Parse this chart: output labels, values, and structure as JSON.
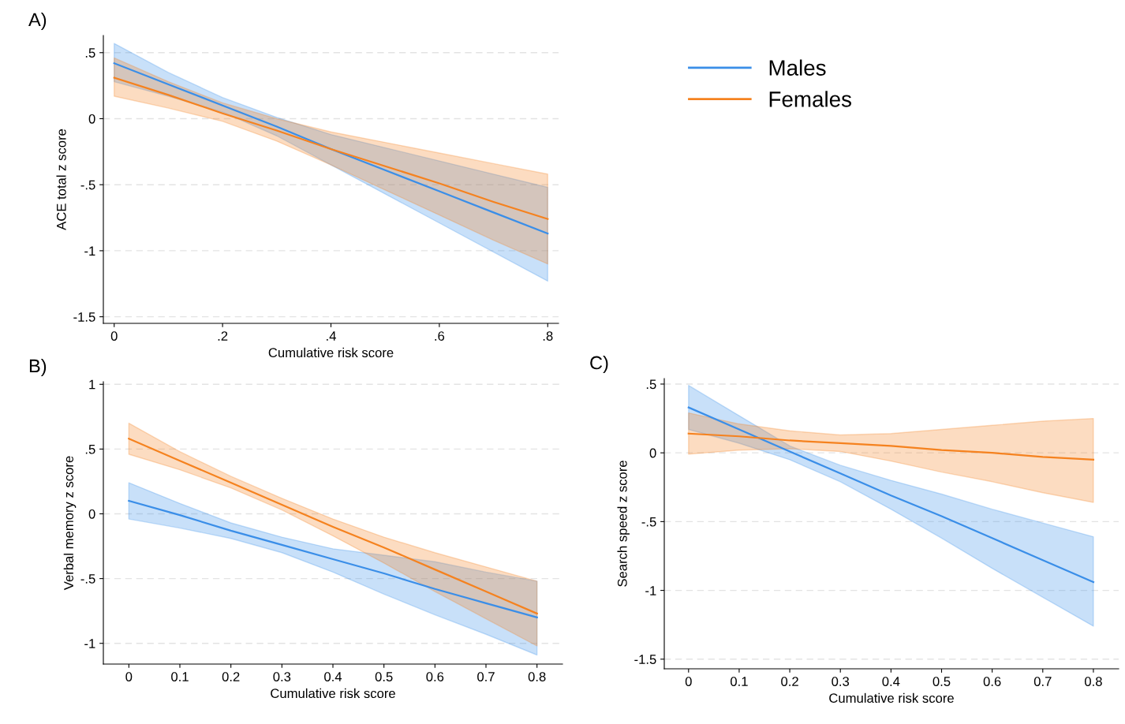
{
  "chart_data": [
    {
      "type": "line",
      "title": "A)",
      "xlabel": "Cumulative risk score",
      "ylabel": "ACE total z score",
      "xlim": [
        -0.02,
        0.82
      ],
      "ylim": [
        -1.55,
        0.63
      ],
      "xticks": [
        0,
        {
          "value": 0.2,
          "label": ".2"
        },
        {
          "value": 0.4,
          "label": ".4"
        },
        {
          "value": 0.6,
          "label": ".6"
        },
        {
          "value": 0.8,
          "label": ".8"
        }
      ],
      "yticks": [
        {
          "value": -1.5,
          "label": "-1.5"
        },
        {
          "value": -1,
          "label": "-1"
        },
        {
          "value": -0.5,
          "label": "-.5"
        },
        0,
        {
          "value": 0.5,
          "label": ".5"
        }
      ],
      "grid": "y",
      "legend": "right",
      "x": [
        0,
        0.1,
        0.2,
        0.3,
        0.4,
        0.5,
        0.6,
        0.7,
        0.8
      ],
      "series": [
        {
          "name": "Males",
          "color": "#3a8ee8",
          "values": [
            0.42,
            0.26,
            0.1,
            -0.06,
            -0.23,
            -0.39,
            -0.55,
            -0.71,
            -0.87
          ],
          "lower": [
            0.28,
            0.17,
            0.05,
            -0.13,
            -0.35,
            -0.57,
            -0.79,
            -1.01,
            -1.23
          ],
          "upper": [
            0.57,
            0.35,
            0.16,
            0.01,
            -0.12,
            -0.22,
            -0.32,
            -0.42,
            -0.52
          ]
        },
        {
          "name": "Females",
          "color": "#f5821f",
          "values": [
            0.31,
            0.18,
            0.04,
            -0.09,
            -0.23,
            -0.36,
            -0.49,
            -0.63,
            -0.76
          ],
          "lower": [
            0.17,
            0.08,
            -0.02,
            -0.17,
            -0.35,
            -0.54,
            -0.73,
            -0.92,
            -1.1
          ],
          "upper": [
            0.46,
            0.28,
            0.12,
            0.0,
            -0.1,
            -0.18,
            -0.26,
            -0.34,
            -0.42
          ]
        }
      ]
    },
    {
      "type": "line",
      "title": "B)",
      "xlabel": "Cumulative risk score",
      "ylabel": "Verbal memory z score",
      "xlim": [
        -0.05,
        0.85
      ],
      "ylim": [
        -1.16,
        1.02
      ],
      "xticks": [
        0,
        0.1,
        0.2,
        0.3,
        0.4,
        0.5,
        0.6,
        0.7,
        0.8
      ],
      "yticks": [
        {
          "value": -1,
          "label": "-1"
        },
        {
          "value": -0.5,
          "label": "-.5"
        },
        0,
        {
          "value": 0.5,
          "label": ".5"
        },
        1
      ],
      "grid": "y",
      "x": [
        0,
        0.1,
        0.2,
        0.3,
        0.4,
        0.5,
        0.6,
        0.7,
        0.8
      ],
      "series": [
        {
          "color": "#3a8ee8",
          "values": [
            0.1,
            -0.01,
            -0.13,
            -0.24,
            -0.35,
            -0.46,
            -0.58,
            -0.69,
            -0.8
          ],
          "lower": [
            -0.04,
            -0.11,
            -0.19,
            -0.3,
            -0.45,
            -0.62,
            -0.78,
            -0.93,
            -1.09
          ],
          "upper": [
            0.24,
            0.08,
            -0.07,
            -0.18,
            -0.27,
            -0.32,
            -0.37,
            -0.45,
            -0.52
          ]
        },
        {
          "color": "#f5821f",
          "values": [
            0.58,
            0.41,
            0.24,
            0.07,
            -0.1,
            -0.26,
            -0.43,
            -0.6,
            -0.77
          ],
          "lower": [
            0.46,
            0.34,
            0.2,
            0.03,
            -0.17,
            -0.38,
            -0.6,
            -0.81,
            -1.02
          ],
          "upper": [
            0.7,
            0.48,
            0.29,
            0.12,
            -0.04,
            -0.18,
            -0.3,
            -0.41,
            -0.52
          ]
        }
      ]
    },
    {
      "type": "line",
      "title": "C)",
      "xlabel": "Cumulative risk score",
      "ylabel": "Search speed z score",
      "xlim": [
        -0.048,
        0.85
      ],
      "ylim": [
        -1.57,
        0.54
      ],
      "xticks": [
        0,
        0.1,
        0.2,
        0.3,
        0.4,
        0.5,
        0.6,
        0.7,
        0.8
      ],
      "yticks": [
        {
          "value": -1.5,
          "label": "-1.5"
        },
        {
          "value": -1,
          "label": "-1"
        },
        {
          "value": -0.5,
          "label": "-.5"
        },
        0,
        {
          "value": 0.5,
          "label": ".5"
        }
      ],
      "grid": "y",
      "x": [
        0,
        0.1,
        0.2,
        0.3,
        0.4,
        0.5,
        0.6,
        0.7,
        0.8
      ],
      "series": [
        {
          "color": "#3a8ee8",
          "values": [
            0.33,
            0.17,
            0.01,
            -0.15,
            -0.31,
            -0.46,
            -0.62,
            -0.78,
            -0.94
          ],
          "lower": [
            0.17,
            0.07,
            -0.05,
            -0.21,
            -0.41,
            -0.62,
            -0.84,
            -1.05,
            -1.26
          ],
          "upper": [
            0.49,
            0.27,
            0.05,
            -0.09,
            -0.2,
            -0.3,
            -0.41,
            -0.51,
            -0.61
          ]
        },
        {
          "color": "#f5821f",
          "values": [
            0.14,
            0.12,
            0.09,
            0.07,
            0.05,
            0.02,
            0.0,
            -0.03,
            -0.05
          ],
          "lower": [
            -0.01,
            0.02,
            0.03,
            0.01,
            -0.06,
            -0.14,
            -0.21,
            -0.29,
            -0.36
          ],
          "upper": [
            0.29,
            0.21,
            0.16,
            0.13,
            0.14,
            0.17,
            0.2,
            0.23,
            0.25
          ]
        }
      ]
    }
  ]
}
